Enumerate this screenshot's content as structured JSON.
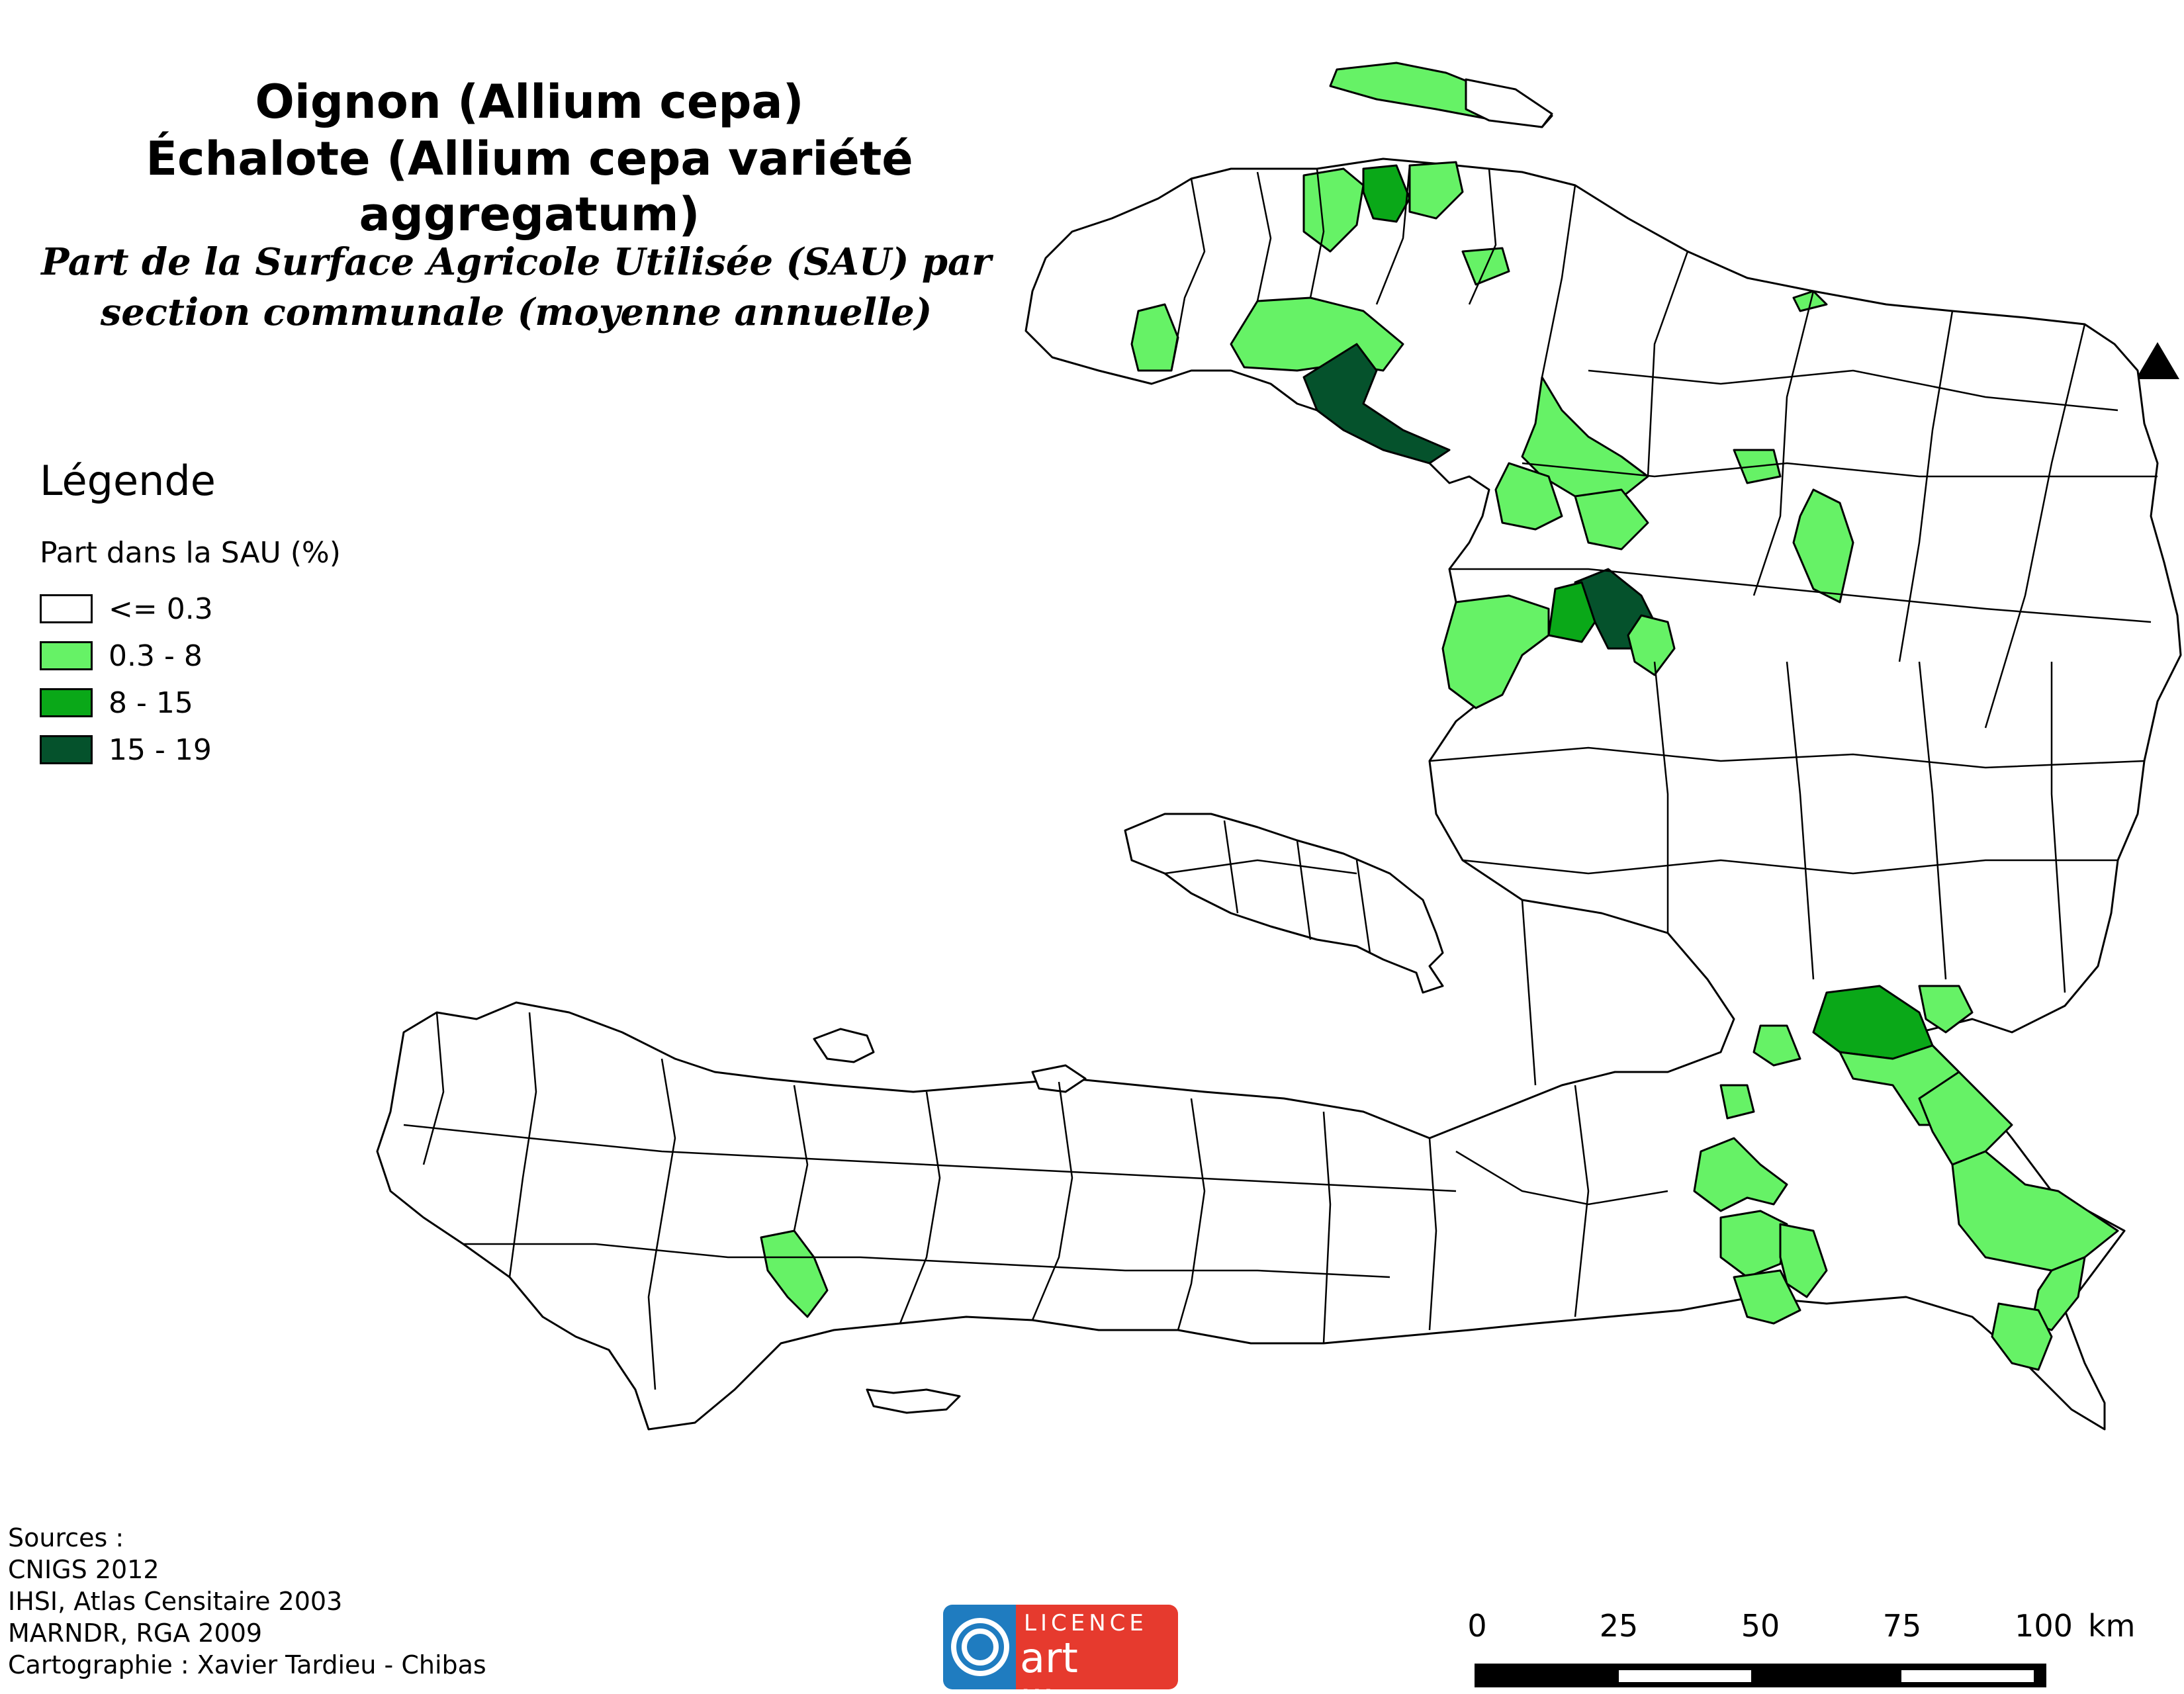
{
  "map": {
    "title_line1": "Oignon (Allium cepa)",
    "title_line2": "Échalote (Allium cepa variété aggregatum)",
    "subtitle_line1": "Part de la Surface Agricole Utilisée (SAU) par",
    "subtitle_line2": "section communale (moyenne annuelle)"
  },
  "legend": {
    "heading": "Légende",
    "subheading": "Part dans la SAU (%)",
    "classes": [
      {
        "label": "<= 0.3",
        "color": "#ffffff"
      },
      {
        "label": "0.3 - 8",
        "color": "#66f266"
      },
      {
        "label": "8 - 15",
        "color": "#0aa818"
      },
      {
        "label": "15 - 19",
        "color": "#05522c"
      }
    ]
  },
  "sources": {
    "lines": [
      "Sources :",
      "CNIGS 2012",
      "IHSI, Atlas Censitaire 2003",
      "MARNDR, RGA 2009",
      "Cartographie : Xavier Tardieu - Chibas"
    ]
  },
  "logo": {
    "line1": "LICENCE",
    "line2": "art libre"
  },
  "scale_bar": {
    "ticks": [
      "0",
      "25",
      "50",
      "75",
      "100"
    ],
    "unit": "km"
  },
  "north_arrow": {
    "icon": "north-arrow-icon"
  }
}
